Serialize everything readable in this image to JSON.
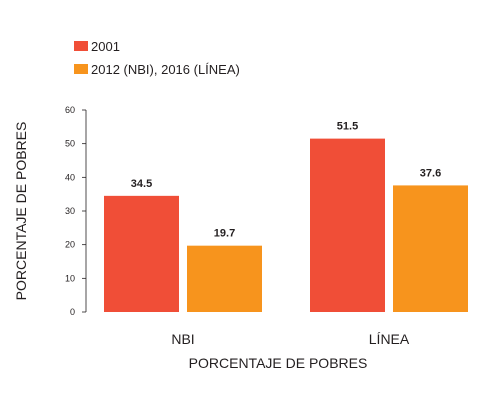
{
  "chart_data": {
    "type": "bar",
    "categories": [
      "NBI",
      "LÍNEA"
    ],
    "series": [
      {
        "name": "2001",
        "values": [
          34.5,
          51.5
        ],
        "color": "#f04e37"
      },
      {
        "name": "2012 (NBI), 2016 (LÍNEA)",
        "values": [
          19.7,
          37.6
        ],
        "color": "#f7941d"
      }
    ],
    "data_labels": [
      [
        "34.5",
        "51.5"
      ],
      [
        "19.7",
        "37.6"
      ]
    ],
    "xlabel": "PORCENTAJE DE POBRES",
    "ylabel": "PORCENTAJE DE POBRES",
    "ylim": [
      0,
      60
    ],
    "yticks": [
      0,
      10,
      20,
      30,
      40,
      50,
      60
    ],
    "grid": false,
    "legend_position": "top-left"
  }
}
